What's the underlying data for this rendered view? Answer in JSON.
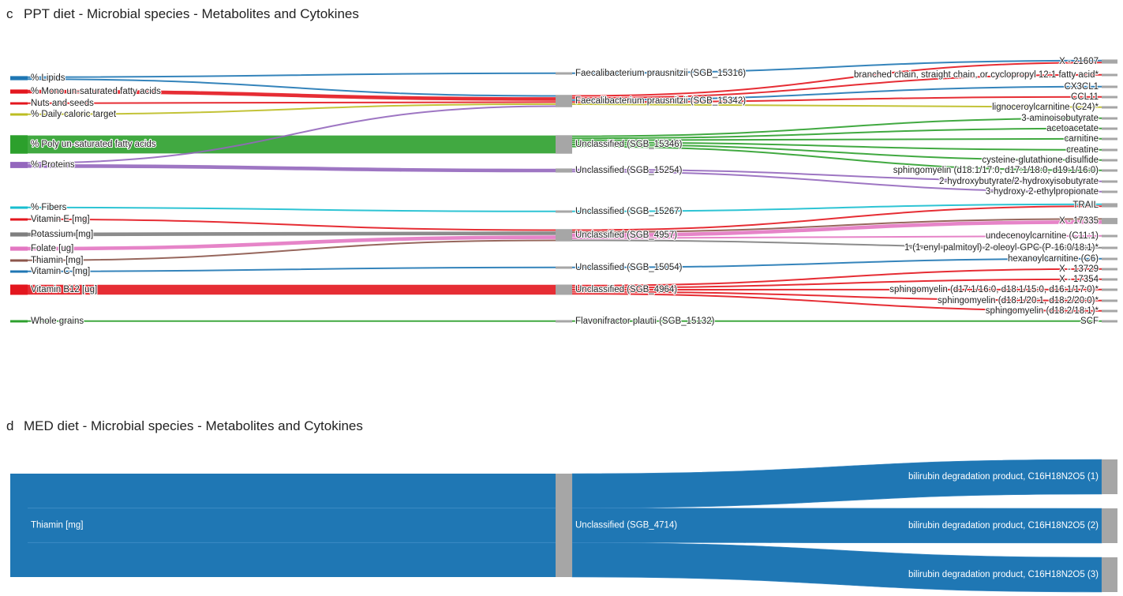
{
  "colors": {
    "blue": "#1f77b4",
    "red": "#e3161e",
    "olive": "#bcbd22",
    "green": "#2ca02c",
    "purple": "#9467bd",
    "cyan": "#17becf",
    "gray": "#7f7f7f",
    "pink": "#e377c2",
    "brown": "#8c564b",
    "node": "#a6a6a6"
  },
  "panels": [
    {
      "id": "c",
      "letter": "c",
      "title": "PPT diet - Microbial species - Metabolites and Cytokines",
      "nodes": {
        "diet": [
          {
            "id": "lipids",
            "label": "% Lipids",
            "color": "blue"
          },
          {
            "id": "mufa",
            "label": "% Mono un-saturated fatty acids",
            "color": "red"
          },
          {
            "id": "nuts",
            "label": "Nuts and seeds",
            "color": "red"
          },
          {
            "id": "cal",
            "label": "% Daily caloric target",
            "color": "olive"
          },
          {
            "id": "pufa",
            "label": "% Poly un-saturated fatty acids",
            "color": "green"
          },
          {
            "id": "prot",
            "label": "% Proteins",
            "color": "purple"
          },
          {
            "id": "fib",
            "label": "% Fibers",
            "color": "cyan"
          },
          {
            "id": "vite",
            "label": "Vitamin E [mg]",
            "color": "red"
          },
          {
            "id": "pot",
            "label": "Potassium [mg]",
            "color": "gray"
          },
          {
            "id": "fol",
            "label": "Folate [ug]",
            "color": "pink"
          },
          {
            "id": "thi",
            "label": "Thiamin [mg]",
            "color": "brown"
          },
          {
            "id": "vitc",
            "label": "Vitamin C [mg]",
            "color": "blue"
          },
          {
            "id": "b12",
            "label": "Vitamin B12 [ug]",
            "color": "red"
          },
          {
            "id": "wg",
            "label": "Whole grains",
            "color": "green"
          }
        ],
        "species": [
          {
            "id": "s15316",
            "label": "Faecalibacterium prausnitzii (SGB_15316)"
          },
          {
            "id": "s15342",
            "label": "Faecalibacterium prausnitzii (SGB_15342)"
          },
          {
            "id": "s15346",
            "label": "Unclassified (SGB_15346)"
          },
          {
            "id": "s15254",
            "label": "Unclassified (SGB_15254)"
          },
          {
            "id": "s15267",
            "label": "Unclassified (SGB_15267)"
          },
          {
            "id": "s4957",
            "label": "Unclassified (SGB_4957)"
          },
          {
            "id": "s15054",
            "label": "Unclassified (SGB_15054)"
          },
          {
            "id": "s4964",
            "label": "Unclassified (SGB_4964)"
          },
          {
            "id": "s15132",
            "label": "Flavonifractor plautii (SGB_15132)"
          }
        ],
        "outcomes": [
          {
            "id": "x21607",
            "label": "X - 21607"
          },
          {
            "id": "bcfa",
            "label": "branched chain, straight chain, or cyclopropyl 12:1 fatty acid*"
          },
          {
            "id": "cx3cl1",
            "label": "CX3CL1"
          },
          {
            "id": "ccl11",
            "label": "CCL11"
          },
          {
            "id": "ligno",
            "label": "lignoceroylcarnitine (C24)*"
          },
          {
            "id": "amino",
            "label": "3-aminoisobutyrate"
          },
          {
            "id": "aceto",
            "label": "acetoacetate"
          },
          {
            "id": "carn",
            "label": "carnitine"
          },
          {
            "id": "creat",
            "label": "creatine"
          },
          {
            "id": "cysglu",
            "label": "cysteine-glutathione disulfide"
          },
          {
            "id": "sm1",
            "label": "sphingomyelin (d18:1/17:0, d17:1/18:0, d19:1/16:0)"
          },
          {
            "id": "hb",
            "label": "2-hydroxybutyrate/2-hydroxyisobutyrate"
          },
          {
            "id": "hep",
            "label": "3-hydroxy-2-ethylpropionate"
          },
          {
            "id": "trail",
            "label": "TRAIL"
          },
          {
            "id": "x17335",
            "label": "X - 17335"
          },
          {
            "id": "c111",
            "label": "undecenoylcarnitine (C11:1)"
          },
          {
            "id": "gpc",
            "label": "1-(1-enyl-palmitoyl)-2-oleoyl-GPC (P-16:0/18:1)*"
          },
          {
            "id": "hexa",
            "label": "hexanoylcarnitine (C6)"
          },
          {
            "id": "x13729",
            "label": "X - 13729"
          },
          {
            "id": "x17354",
            "label": "X - 17354"
          },
          {
            "id": "sm2",
            "label": "sphingomyelin (d17:1/16:0, d18:1/15:0, d16:1/17:0)*"
          },
          {
            "id": "sm3",
            "label": "sphingomyelin (d18:1/20:1, d18:2/20:0)*"
          },
          {
            "id": "sm4",
            "label": "sphingomyelin (d18:2/18:1)*"
          },
          {
            "id": "scf",
            "label": "SCF"
          }
        ]
      },
      "links_diet_species": [
        {
          "from": "lipids",
          "to": "s15316",
          "value": 1
        },
        {
          "from": "lipids",
          "to": "s15342",
          "value": 1
        },
        {
          "from": "mufa",
          "to": "s15342",
          "value": 2
        },
        {
          "from": "nuts",
          "to": "s15342",
          "value": 1
        },
        {
          "from": "cal",
          "to": "s15342",
          "value": 1
        },
        {
          "from": "pufa",
          "to": "s15346",
          "value": 9
        },
        {
          "from": "prot",
          "to": "s15342",
          "value": 1
        },
        {
          "from": "prot",
          "to": "s15254",
          "value": 2
        },
        {
          "from": "fib",
          "to": "s15267",
          "value": 1
        },
        {
          "from": "vite",
          "to": "s4957",
          "value": 1
        },
        {
          "from": "pot",
          "to": "s4957",
          "value": 2
        },
        {
          "from": "fol",
          "to": "s4957",
          "value": 2
        },
        {
          "from": "thi",
          "to": "s4957",
          "value": 1
        },
        {
          "from": "vitc",
          "to": "s15054",
          "value": 1
        },
        {
          "from": "b12",
          "to": "s4964",
          "value": 5
        },
        {
          "from": "wg",
          "to": "s15132",
          "value": 1
        }
      ],
      "links_species_outcomes": [
        {
          "from": "s15316",
          "to": "x21607",
          "color": "blue",
          "value": 1
        },
        {
          "from": "s15342",
          "to": "x21607",
          "color": "red",
          "value": 1
        },
        {
          "from": "s15342",
          "to": "bcfa",
          "color": "red",
          "value": 1
        },
        {
          "from": "s15342",
          "to": "cx3cl1",
          "color": "blue",
          "value": 1
        },
        {
          "from": "s15342",
          "to": "ccl11",
          "color": "red",
          "value": 1
        },
        {
          "from": "s15342",
          "to": "ligno",
          "color": "olive",
          "value": 1
        },
        {
          "from": "s15346",
          "to": "amino",
          "color": "green",
          "value": 1
        },
        {
          "from": "s15346",
          "to": "aceto",
          "color": "green",
          "value": 1
        },
        {
          "from": "s15346",
          "to": "carn",
          "color": "green",
          "value": 1
        },
        {
          "from": "s15346",
          "to": "creat",
          "color": "green",
          "value": 1
        },
        {
          "from": "s15346",
          "to": "cysglu",
          "color": "green",
          "value": 1
        },
        {
          "from": "s15346",
          "to": "sm1",
          "color": "green",
          "value": 1
        },
        {
          "from": "s15254",
          "to": "hb",
          "color": "purple",
          "value": 1
        },
        {
          "from": "s15254",
          "to": "hep",
          "color": "purple",
          "value": 1
        },
        {
          "from": "s15267",
          "to": "trail",
          "color": "cyan",
          "value": 1
        },
        {
          "from": "s4957",
          "to": "trail",
          "color": "red",
          "value": 1
        },
        {
          "from": "s4957",
          "to": "x17335",
          "color": "brown",
          "value": 1
        },
        {
          "from": "s4957",
          "to": "x17335",
          "color": "pink",
          "value": 2
        },
        {
          "from": "s4957",
          "to": "c111",
          "color": "pink",
          "value": 1
        },
        {
          "from": "s4957",
          "to": "gpc",
          "color": "gray",
          "value": 1
        },
        {
          "from": "s15054",
          "to": "hexa",
          "color": "blue",
          "value": 1
        },
        {
          "from": "s4964",
          "to": "x13729",
          "color": "red",
          "value": 1
        },
        {
          "from": "s4964",
          "to": "x17354",
          "color": "red",
          "value": 1
        },
        {
          "from": "s4964",
          "to": "sm2",
          "color": "red",
          "value": 1
        },
        {
          "from": "s4964",
          "to": "sm3",
          "color": "red",
          "value": 1
        },
        {
          "from": "s4964",
          "to": "sm4",
          "color": "red",
          "value": 1
        },
        {
          "from": "s15132",
          "to": "scf",
          "color": "green",
          "value": 1
        }
      ]
    },
    {
      "id": "d",
      "letter": "d",
      "title": "MED diet - Microbial species - Metabolites and Cytokines",
      "nodes": {
        "diet": [
          {
            "id": "thiamin",
            "label": "Thiamin [mg]",
            "color": "blue"
          }
        ],
        "species": [
          {
            "id": "s4714",
            "label": "Unclassified (SGB_4714)"
          }
        ],
        "outcomes": [
          {
            "id": "bdp1",
            "label": "bilirubin degradation product, C16H18N2O5 (1)"
          },
          {
            "id": "bdp2",
            "label": "bilirubin degradation product, C16H18N2O5 (2)"
          },
          {
            "id": "bdp3",
            "label": "bilirubin degradation product, C16H18N2O5 (3)"
          }
        ]
      },
      "links_diet_species": [
        {
          "from": "thiamin",
          "to": "s4714",
          "value": 3
        }
      ],
      "links_species_outcomes": [
        {
          "from": "s4714",
          "to": "bdp1",
          "color": "blue",
          "value": 1
        },
        {
          "from": "s4714",
          "to": "bdp2",
          "color": "blue",
          "value": 1
        },
        {
          "from": "s4714",
          "to": "bdp3",
          "color": "blue",
          "value": 1
        }
      ]
    }
  ]
}
